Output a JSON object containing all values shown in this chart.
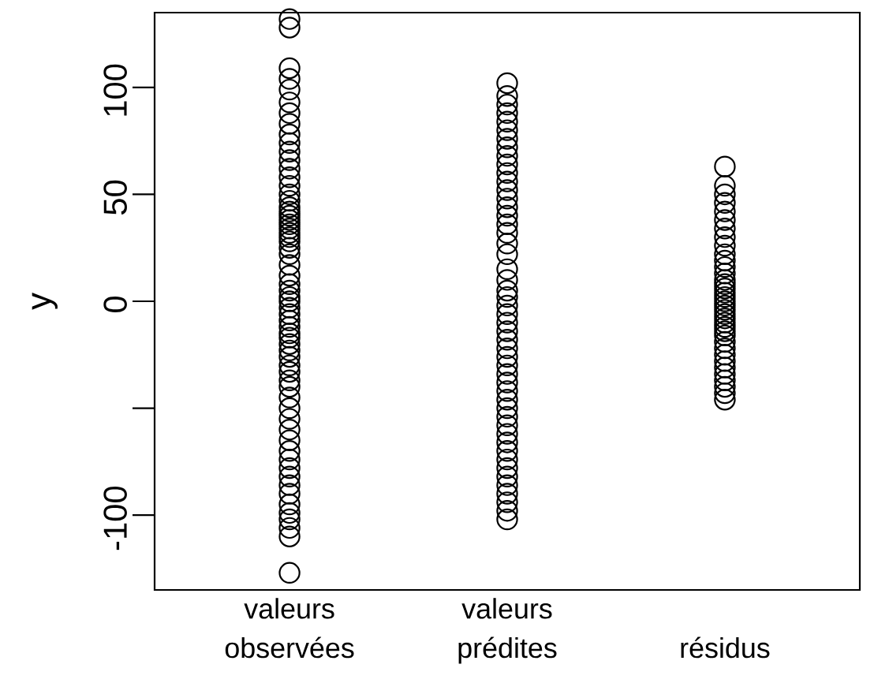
{
  "chart_data": {
    "type": "scatter",
    "ylabel": "y",
    "categories": [
      "valeurs observées",
      "valeurs prédites",
      "résidus"
    ],
    "ylim": [
      -135,
      135
    ],
    "yticks": [
      -100,
      {
        "value": -50,
        "label": null
      },
      0,
      50,
      100
    ],
    "marker": "circle",
    "grid": false,
    "legend": false,
    "series": [
      {
        "color": "#000000",
        "x": [
          "valeurs observées",
          "valeurs observées",
          "valeurs observées",
          "valeurs observées",
          "valeurs observées",
          "valeurs observées",
          "valeurs observées",
          "valeurs observées",
          "valeurs observées",
          "valeurs observées",
          "valeurs observées",
          "valeurs observées",
          "valeurs observées",
          "valeurs observées",
          "valeurs observées",
          "valeurs observées",
          "valeurs observées",
          "valeurs observées",
          "valeurs observées",
          "valeurs observées",
          "valeurs observées",
          "valeurs observées",
          "valeurs observées",
          "valeurs observées",
          "valeurs observées",
          "valeurs observées",
          "valeurs observées",
          "valeurs observées",
          "valeurs observées",
          "valeurs observées",
          "valeurs observées",
          "valeurs observées",
          "valeurs observées",
          "valeurs observées",
          "valeurs observées",
          "valeurs observées",
          "valeurs observées",
          "valeurs observées",
          "valeurs observées",
          "valeurs observées",
          "valeurs observées",
          "valeurs observées",
          "valeurs observées",
          "valeurs observées",
          "valeurs observées",
          "valeurs observées",
          "valeurs observées",
          "valeurs observées",
          "valeurs observées",
          "valeurs observées",
          "valeurs observées",
          "valeurs observées",
          "valeurs observées",
          "valeurs observées",
          "valeurs observées",
          "valeurs observées",
          "valeurs observées",
          "valeurs observées",
          "valeurs observées",
          "valeurs observées",
          "valeurs observées",
          "valeurs observées",
          "valeurs observées",
          "valeurs observées"
        ],
        "values": [
          132,
          128,
          109,
          104,
          99,
          93,
          88,
          83,
          78,
          74,
          70,
          66,
          62,
          58,
          54,
          50,
          47,
          44,
          42,
          40,
          38,
          36,
          34,
          32,
          30,
          28,
          25,
          22,
          17,
          12,
          8,
          5,
          2,
          0,
          -3,
          -6,
          -9,
          -12,
          -15,
          -17,
          -20,
          -23,
          -26,
          -30,
          -33,
          -37,
          -40,
          -45,
          -50,
          -55,
          -60,
          -65,
          -70,
          -74,
          -78,
          -82,
          -86,
          -90,
          -95,
          -99,
          -102,
          -106,
          -110,
          -127
        ]
      },
      {
        "color": "#000000",
        "x": [
          "valeurs prédites",
          "valeurs prédites",
          "valeurs prédites",
          "valeurs prédites",
          "valeurs prédites",
          "valeurs prédites",
          "valeurs prédites",
          "valeurs prédites",
          "valeurs prédites",
          "valeurs prédites",
          "valeurs prédites",
          "valeurs prédites",
          "valeurs prédites",
          "valeurs prédites",
          "valeurs prédites",
          "valeurs prédites",
          "valeurs prédites",
          "valeurs prédites",
          "valeurs prédites",
          "valeurs prédites",
          "valeurs prédites",
          "valeurs prédites",
          "valeurs prédites",
          "valeurs prédites",
          "valeurs prédites",
          "valeurs prédites",
          "valeurs prédites",
          "valeurs prédites",
          "valeurs prédites",
          "valeurs prédites",
          "valeurs prédites",
          "valeurs prédites",
          "valeurs prédites",
          "valeurs prédites",
          "valeurs prédites",
          "valeurs prédites",
          "valeurs prédites",
          "valeurs prédites",
          "valeurs prédites",
          "valeurs prédites",
          "valeurs prédites",
          "valeurs prédites",
          "valeurs prédites",
          "valeurs prédites",
          "valeurs prédites",
          "valeurs prédites",
          "valeurs prédites",
          "valeurs prédites",
          "valeurs prédites",
          "valeurs prédites"
        ],
        "values": [
          102,
          96,
          92,
          88,
          84,
          80,
          76,
          72,
          68,
          64,
          60,
          56,
          52,
          48,
          44,
          40,
          36,
          32,
          27,
          22,
          15,
          10,
          5,
          2,
          -2,
          -6,
          -10,
          -14,
          -18,
          -22,
          -26,
          -30,
          -34,
          -38,
          -42,
          -46,
          -50,
          -54,
          -58,
          -62,
          -66,
          -70,
          -74,
          -78,
          -82,
          -86,
          -90,
          -94,
          -98,
          -102
        ]
      },
      {
        "color": "#000000",
        "x": [
          "résidus",
          "résidus",
          "résidus",
          "résidus",
          "résidus",
          "résidus",
          "résidus",
          "résidus",
          "résidus",
          "résidus",
          "résidus",
          "résidus",
          "résidus",
          "résidus",
          "résidus",
          "résidus",
          "résidus",
          "résidus",
          "résidus",
          "résidus",
          "résidus",
          "résidus",
          "résidus",
          "résidus",
          "résidus",
          "résidus",
          "résidus",
          "résidus",
          "résidus",
          "résidus",
          "résidus",
          "résidus",
          "résidus",
          "résidus",
          "résidus",
          "résidus",
          "résidus"
        ],
        "values": [
          63,
          54,
          50,
          46,
          42,
          38,
          34,
          30,
          26,
          22,
          19,
          16,
          13,
          10,
          8,
          6,
          4,
          2,
          0,
          -2,
          -4,
          -6,
          -8,
          -10,
          -12,
          -14,
          -16,
          -19,
          -22,
          -25,
          -28,
          -31,
          -34,
          -37,
          -40,
          -43,
          -46
        ]
      }
    ]
  }
}
